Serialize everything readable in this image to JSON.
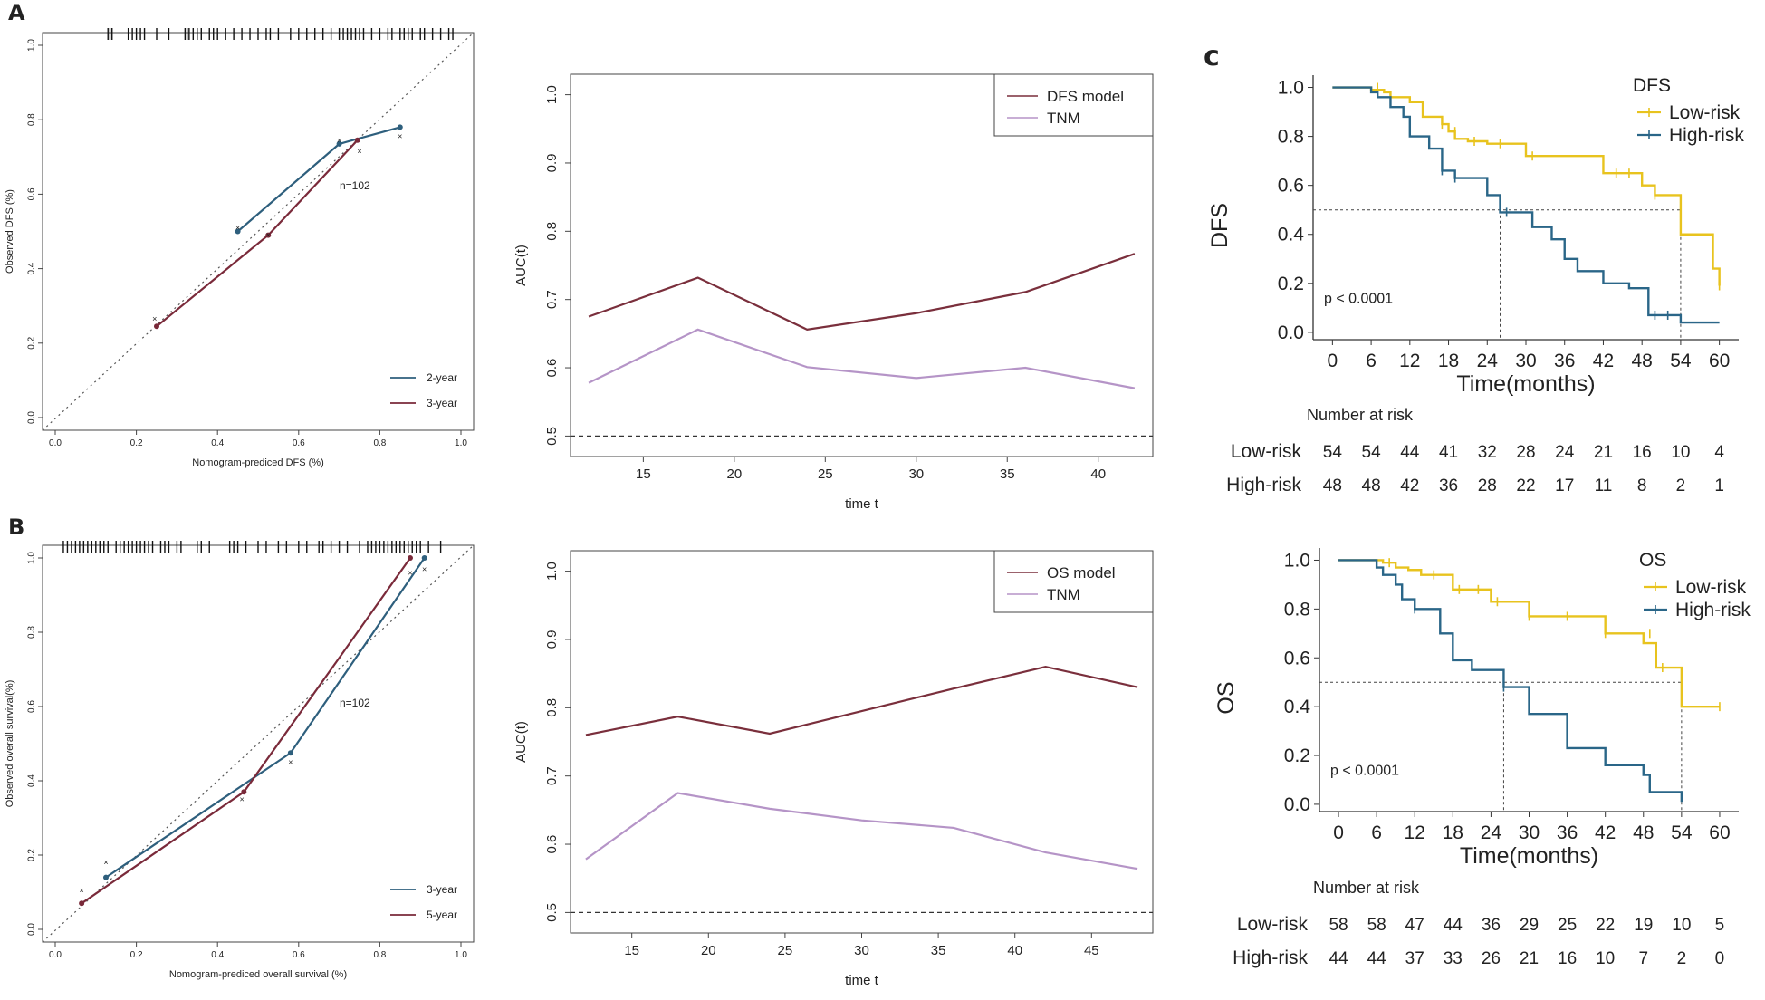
{
  "panel_labels": {
    "a": "A",
    "b": "B",
    "c": "c"
  },
  "chart_data": [
    {
      "id": "calA",
      "type": "scatter",
      "subtype": "calibration",
      "xlabel": "Nomogram-prediced DFS (%)",
      "ylabel": "Observed DFS (%)",
      "xlim": [
        0,
        1
      ],
      "ylim": [
        0,
        1
      ],
      "xticks": [
        "0.0",
        "0.2",
        "0.4",
        "0.6",
        "0.8",
        "1.0"
      ],
      "yticks": [
        "0.0",
        "0.2",
        "0.4",
        "0.6",
        "0.8",
        "1.0"
      ],
      "annotation": "n=102",
      "legend": [
        {
          "name": "2-year",
          "color": "#2e5f7d"
        },
        {
          "name": "3-year",
          "color": "#7a2a3a"
        }
      ],
      "series": [
        {
          "name": "2-year",
          "color": "#2e5f7d",
          "x": [
            0.45,
            0.7,
            0.85
          ],
          "y": [
            0.5,
            0.735,
            0.78
          ],
          "x_cross": [
            0.45,
            0.7,
            0.85
          ],
          "y_cross": [
            0.51,
            0.745,
            0.755
          ]
        },
        {
          "name": "3-year",
          "color": "#7a2a3a",
          "x": [
            0.25,
            0.525,
            0.745
          ],
          "y": [
            0.245,
            0.49,
            0.745
          ],
          "x_cross": [
            0.245,
            0.525,
            0.75
          ],
          "y_cross": [
            0.265,
            0.49,
            0.715
          ]
        }
      ],
      "rug": [
        0.13,
        0.135,
        0.14,
        0.18,
        0.19,
        0.2,
        0.21,
        0.22,
        0.25,
        0.28,
        0.32,
        0.325,
        0.33,
        0.34,
        0.35,
        0.36,
        0.38,
        0.39,
        0.4,
        0.42,
        0.44,
        0.46,
        0.48,
        0.5,
        0.52,
        0.53,
        0.55,
        0.58,
        0.6,
        0.62,
        0.64,
        0.66,
        0.68,
        0.7,
        0.71,
        0.72,
        0.73,
        0.74,
        0.75,
        0.76,
        0.78,
        0.8,
        0.82,
        0.83,
        0.85,
        0.86,
        0.87,
        0.88,
        0.9,
        0.91,
        0.93,
        0.95,
        0.97,
        0.98
      ]
    },
    {
      "id": "aucA",
      "type": "line",
      "xlabel": "time t",
      "ylabel": "AUC(t)",
      "xlim": [
        11,
        43
      ],
      "ylim": [
        0.47,
        1.03
      ],
      "xticks": [
        "15",
        "20",
        "25",
        "30",
        "35",
        "40"
      ],
      "yticks": [
        "0.5",
        "0.6",
        "0.7",
        "0.8",
        "0.9",
        "1.0"
      ],
      "hline": 0.5,
      "legend": [
        {
          "name": "DFS model",
          "color": "#7a2f3c"
        },
        {
          "name": "TNM",
          "color": "#b594c7"
        }
      ],
      "series": [
        {
          "name": "DFS model",
          "color": "#7a2f3c",
          "x": [
            12,
            18,
            24,
            30,
            36,
            42
          ],
          "y": [
            0.675,
            0.732,
            0.656,
            0.68,
            0.711,
            0.767
          ]
        },
        {
          "name": "TNM",
          "color": "#b594c7",
          "x": [
            12,
            18,
            24,
            30,
            36,
            42
          ],
          "y": [
            0.578,
            0.656,
            0.601,
            0.585,
            0.6,
            0.57
          ]
        }
      ]
    },
    {
      "id": "calB",
      "type": "scatter",
      "subtype": "calibration",
      "xlabel": "Nomogram-prediced overall survival (%)",
      "ylabel": "Observed overall survival(%)",
      "xlim": [
        0,
        1
      ],
      "ylim": [
        0,
        1
      ],
      "xticks": [
        "0.0",
        "0.2",
        "0.4",
        "0.6",
        "0.8",
        "1.0"
      ],
      "yticks": [
        "0.0",
        "0.2",
        "0.4",
        "0.6",
        "0.8",
        "1.0"
      ],
      "annotation": "n=102",
      "legend": [
        {
          "name": "3-year",
          "color": "#2e5f7d"
        },
        {
          "name": "5-year",
          "color": "#7a2a3a"
        }
      ],
      "series": [
        {
          "name": "3-year",
          "color": "#2e5f7d",
          "x": [
            0.125,
            0.58,
            0.91
          ],
          "y": [
            0.14,
            0.475,
            1.0
          ],
          "x_cross": [
            0.125,
            0.58,
            0.91
          ],
          "y_cross": [
            0.18,
            0.45,
            0.97
          ]
        },
        {
          "name": "5-year",
          "color": "#7a2a3a",
          "x": [
            0.065,
            0.465,
            0.875
          ],
          "y": [
            0.07,
            0.37,
            1.0
          ],
          "x_cross": [
            0.065,
            0.46,
            0.875
          ],
          "y_cross": [
            0.105,
            0.35,
            0.96
          ]
        }
      ],
      "rug": [
        0.02,
        0.03,
        0.04,
        0.05,
        0.06,
        0.07,
        0.08,
        0.09,
        0.1,
        0.11,
        0.12,
        0.13,
        0.15,
        0.16,
        0.17,
        0.18,
        0.19,
        0.2,
        0.21,
        0.22,
        0.23,
        0.24,
        0.26,
        0.27,
        0.28,
        0.3,
        0.31,
        0.35,
        0.36,
        0.38,
        0.43,
        0.44,
        0.45,
        0.47,
        0.5,
        0.52,
        0.55,
        0.57,
        0.6,
        0.62,
        0.65,
        0.66,
        0.68,
        0.7,
        0.72,
        0.75,
        0.77,
        0.78,
        0.79,
        0.8,
        0.81,
        0.82,
        0.83,
        0.84,
        0.85,
        0.86,
        0.87,
        0.88,
        0.89,
        0.9,
        0.92,
        0.95
      ]
    },
    {
      "id": "aucB",
      "type": "line",
      "xlabel": "time t",
      "ylabel": "AUC(t)",
      "xlim": [
        11,
        49
      ],
      "ylim": [
        0.47,
        1.03
      ],
      "xticks": [
        "15",
        "20",
        "25",
        "30",
        "35",
        "40",
        "45"
      ],
      "yticks": [
        "0.5",
        "0.6",
        "0.7",
        "0.8",
        "0.9",
        "1.0"
      ],
      "hline": 0.5,
      "legend": [
        {
          "name": "OS model",
          "color": "#7a2f3c"
        },
        {
          "name": "TNM",
          "color": "#b594c7"
        }
      ],
      "series": [
        {
          "name": "OS model",
          "color": "#7a2f3c",
          "x": [
            12,
            18,
            24,
            30,
            36,
            42,
            48
          ],
          "y": [
            0.76,
            0.787,
            0.762,
            0.795,
            0.828,
            0.86,
            0.83
          ],
          "color_note": ""
        },
        {
          "name": "TNM",
          "color": "#b594c7",
          "x": [
            12,
            18,
            24,
            30,
            36,
            42,
            48
          ],
          "y": [
            0.578,
            0.675,
            0.652,
            0.635,
            0.624,
            0.588,
            0.564
          ]
        }
      ]
    },
    {
      "id": "kmDFS",
      "type": "line",
      "subtype": "kaplan-meier",
      "xlabel": "Time(months)",
      "ylabel": "DFS",
      "xlim": [
        -3,
        63
      ],
      "ylim": [
        -0.03,
        1.05
      ],
      "xticks": [
        "0",
        "6",
        "12",
        "18",
        "24",
        "30",
        "36",
        "42",
        "48",
        "54",
        "60"
      ],
      "yticks": [
        "0.0",
        "0.2",
        "0.4",
        "0.6",
        "0.8",
        "1.0"
      ],
      "legend_title": "DFS",
      "pvalue": "p < 0.0001",
      "median": [
        26,
        54
      ],
      "series": [
        {
          "name": "Low-risk",
          "color": "#e8c31e",
          "x": [
            0,
            6,
            8,
            9,
            12,
            14,
            17,
            18,
            19,
            21,
            24,
            30,
            42,
            48,
            50,
            54,
            59,
            60
          ],
          "y": [
            1.0,
            0.99,
            0.98,
            0.96,
            0.94,
            0.88,
            0.85,
            0.82,
            0.79,
            0.78,
            0.77,
            0.72,
            0.65,
            0.6,
            0.56,
            0.4,
            0.26,
            0.19
          ],
          "end": 60,
          "censors": [
            [
              7,
              1.0
            ],
            [
              17,
              0.85
            ],
            [
              19,
              0.82
            ],
            [
              22,
              0.78
            ],
            [
              26,
              0.77
            ],
            [
              31,
              0.72
            ],
            [
              44,
              0.65
            ],
            [
              46,
              0.65
            ],
            [
              50,
              0.56
            ],
            [
              60,
              0.19
            ]
          ]
        },
        {
          "name": "High-risk",
          "color": "#2a6688",
          "x": [
            0,
            6,
            7,
            9,
            11,
            12,
            15,
            17,
            19,
            24,
            26,
            31,
            34,
            36,
            38,
            42,
            46,
            49,
            54
          ],
          "y": [
            1.0,
            0.98,
            0.96,
            0.92,
            0.88,
            0.8,
            0.75,
            0.66,
            0.63,
            0.56,
            0.49,
            0.43,
            0.38,
            0.3,
            0.25,
            0.2,
            0.18,
            0.07,
            0.04
          ],
          "end": 60,
          "censors": [
            [
              17,
              0.66
            ],
            [
              19,
              0.63
            ],
            [
              27,
              0.49
            ],
            [
              50,
              0.07
            ],
            [
              52,
              0.07
            ]
          ]
        }
      ],
      "risk_table": {
        "title": "Number at risk",
        "rows": [
          {
            "label": "Low-risk",
            "values": [
              "54",
              "54",
              "44",
              "41",
              "32",
              "28",
              "24",
              "21",
              "16",
              "10",
              "4"
            ]
          },
          {
            "label": "High-risk",
            "values": [
              "48",
              "48",
              "42",
              "36",
              "28",
              "22",
              "17",
              "11",
              "8",
              "2",
              "1"
            ]
          }
        ]
      }
    },
    {
      "id": "kmOS",
      "type": "line",
      "subtype": "kaplan-meier",
      "xlabel": "Time(months)",
      "ylabel": "OS",
      "xlim": [
        -3,
        63
      ],
      "ylim": [
        -0.03,
        1.05
      ],
      "xticks": [
        "0",
        "6",
        "12",
        "18",
        "24",
        "30",
        "36",
        "42",
        "48",
        "54",
        "60"
      ],
      "yticks": [
        "0.0",
        "0.2",
        "0.4",
        "0.6",
        "0.8",
        "1.0"
      ],
      "legend_title": "OS",
      "pvalue": "p < 0.0001",
      "median": [
        26,
        54
      ],
      "series": [
        {
          "name": "Low-risk",
          "color": "#e8c31e",
          "x": [
            0,
            7,
            9,
            11,
            13,
            18,
            24,
            30,
            42,
            48,
            50,
            54
          ],
          "y": [
            1.0,
            0.99,
            0.97,
            0.96,
            0.94,
            0.88,
            0.83,
            0.77,
            0.7,
            0.66,
            0.56,
            0.4
          ],
          "end": 60,
          "censors": [
            [
              8,
              0.99
            ],
            [
              15,
              0.94
            ],
            [
              19,
              0.88
            ],
            [
              22,
              0.88
            ],
            [
              25,
              0.83
            ],
            [
              30,
              0.77
            ],
            [
              36,
              0.77
            ],
            [
              42,
              0.7
            ],
            [
              49,
              0.7
            ],
            [
              51,
              0.56
            ],
            [
              60,
              0.4
            ]
          ]
        },
        {
          "name": "High-risk",
          "color": "#2a6688",
          "x": [
            0,
            6,
            7,
            9,
            10,
            12,
            16,
            18,
            21,
            24,
            26,
            30,
            36,
            42,
            44,
            48,
            49,
            51,
            54
          ],
          "y": [
            1.0,
            0.97,
            0.94,
            0.9,
            0.84,
            0.8,
            0.7,
            0.59,
            0.55,
            0.55,
            0.48,
            0.37,
            0.23,
            0.16,
            0.16,
            0.12,
            0.05,
            0.05,
            0.01
          ],
          "end": 54,
          "censors": [
            [
              12,
              0.8
            ],
            [
              26,
              0.48
            ]
          ]
        }
      ],
      "risk_table": {
        "title": "Number at risk",
        "rows": [
          {
            "label": "Low-risk",
            "values": [
              "58",
              "58",
              "47",
              "44",
              "36",
              "29",
              "25",
              "22",
              "19",
              "10",
              "5"
            ]
          },
          {
            "label": "High-risk",
            "values": [
              "44",
              "44",
              "37",
              "33",
              "26",
              "21",
              "16",
              "10",
              "7",
              "2",
              "0"
            ]
          }
        ]
      }
    }
  ]
}
